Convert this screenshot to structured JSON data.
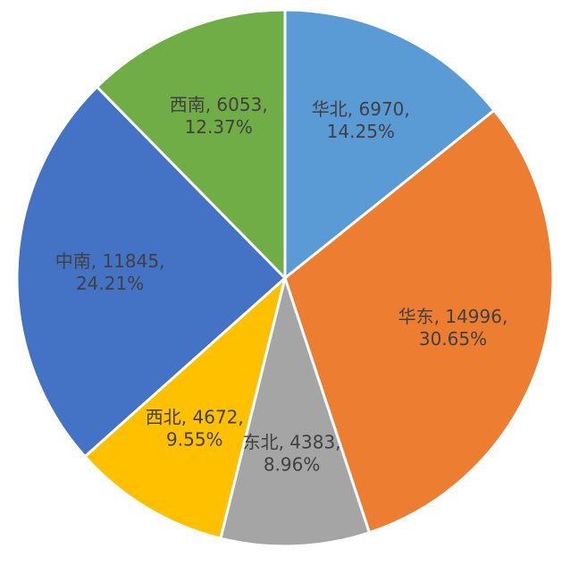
{
  "chart_data": {
    "type": "pie",
    "title": "",
    "start_angle_deg": 0,
    "direction": "clockwise",
    "slices": [
      {
        "label": "华北",
        "value": 6970,
        "percent": "14.25%",
        "color": "#5B9BD5",
        "text": [
          "华北, 6970,",
          "14.25%"
        ]
      },
      {
        "label": "华东",
        "value": 14996,
        "percent": "30.65%",
        "color": "#ED7D31",
        "text": [
          "华东, 14996,",
          "30.65%"
        ]
      },
      {
        "label": "东北",
        "value": 4383,
        "percent": "8.96%",
        "color": "#A5A5A5",
        "text": [
          "东北, 4383,",
          "8.96%"
        ]
      },
      {
        "label": "西北",
        "value": 4672,
        "percent": "9.55%",
        "color": "#FFC000",
        "text": [
          "西北, 4672,",
          "9.55%"
        ]
      },
      {
        "label": "中南",
        "value": 11845,
        "percent": "24.21%",
        "color": "#4472C4",
        "text": [
          "中南, 11845,",
          "24.21%"
        ]
      },
      {
        "label": "西南",
        "value": 6053,
        "percent": "12.37%",
        "color": "#70AD47",
        "text": [
          "西南, 6053,",
          "12.37%"
        ]
      }
    ]
  }
}
